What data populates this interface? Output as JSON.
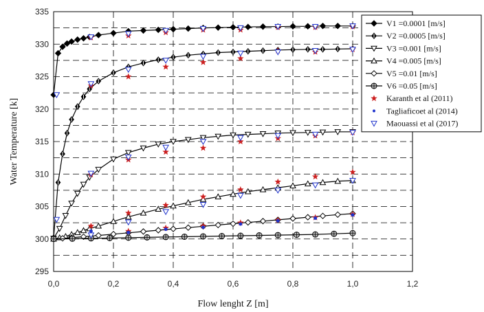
{
  "chart_data": {
    "type": "line",
    "title": "",
    "xlabel": "Flow lenght Z [m]",
    "ylabel": "Water Temperature [k]",
    "xlim": [
      0,
      1.2
    ],
    "ylim": [
      295,
      335
    ],
    "x_ticks": [
      0,
      0.2,
      0.4,
      0.6,
      0.8,
      1.0,
      1.2
    ],
    "x_tick_labels": [
      "0,0",
      "0,2",
      "0,4",
      "0,6",
      "0,8",
      "1,0",
      "1,2"
    ],
    "y_ticks": [
      295,
      300,
      305,
      310,
      315,
      320,
      325,
      330,
      335
    ],
    "y_tick_labels": [
      "295",
      "300",
      "305",
      "310",
      "315",
      "320",
      "325",
      "330",
      "335"
    ],
    "grid": "dashed",
    "legend_position": "top-right",
    "series": [
      {
        "name": "V1 =0.0001 [m/s]",
        "marker": "filled-diamond",
        "color": "#000000",
        "x": [
          0,
          0.015,
          0.03,
          0.045,
          0.06,
          0.08,
          0.1,
          0.12,
          0.15,
          0.2,
          0.25,
          0.3,
          0.35,
          0.4,
          0.45,
          0.5,
          0.55,
          0.6,
          0.65,
          0.7,
          0.75,
          0.8,
          0.85,
          0.9,
          0.95,
          1.0
        ],
        "y": [
          322.2,
          328.6,
          329.6,
          330.1,
          330.4,
          330.7,
          330.9,
          331.1,
          331.4,
          331.7,
          332.0,
          332.1,
          332.2,
          332.3,
          332.4,
          332.5,
          332.55,
          332.6,
          332.65,
          332.7,
          332.7,
          332.75,
          332.75,
          332.8,
          332.8,
          332.8
        ]
      },
      {
        "name": "V2 =0.0005 [m/s]",
        "marker": "open-diamond-bold",
        "color": "#000000",
        "x": [
          0,
          0.015,
          0.03,
          0.045,
          0.06,
          0.08,
          0.1,
          0.12,
          0.15,
          0.2,
          0.25,
          0.3,
          0.35,
          0.4,
          0.45,
          0.5,
          0.55,
          0.6,
          0.65,
          0.7,
          0.75,
          0.8,
          0.85,
          0.9,
          0.95,
          1.0
        ],
        "y": [
          300.2,
          308.7,
          313.1,
          316.3,
          318.4,
          320.4,
          321.9,
          323.1,
          324.3,
          325.6,
          326.5,
          327.1,
          327.6,
          328.0,
          328.3,
          328.5,
          328.7,
          328.8,
          328.9,
          329.0,
          329.1,
          329.15,
          329.2,
          329.2,
          329.25,
          329.3
        ]
      },
      {
        "name": "V3 =0.001   [m/s]",
        "marker": "open-triangle-down",
        "color": "#000000",
        "x": [
          0,
          0.02,
          0.04,
          0.06,
          0.08,
          0.1,
          0.12,
          0.15,
          0.2,
          0.25,
          0.3,
          0.35,
          0.4,
          0.45,
          0.5,
          0.55,
          0.6,
          0.65,
          0.7,
          0.75,
          0.8,
          0.85,
          0.9,
          0.95,
          1.0
        ],
        "y": [
          300.1,
          301.6,
          303.6,
          305.5,
          307.0,
          308.4,
          309.5,
          310.7,
          312.3,
          313.3,
          314.0,
          314.6,
          315.0,
          315.3,
          315.6,
          315.8,
          316.0,
          316.1,
          316.2,
          316.3,
          316.35,
          316.4,
          316.45,
          316.5,
          316.5
        ]
      },
      {
        "name": "V4 =0.005   [m/s]",
        "marker": "open-triangle-up",
        "color": "#000000",
        "x": [
          0,
          0.02,
          0.04,
          0.06,
          0.08,
          0.1,
          0.12,
          0.15,
          0.2,
          0.25,
          0.3,
          0.35,
          0.4,
          0.45,
          0.5,
          0.55,
          0.6,
          0.65,
          0.7,
          0.75,
          0.8,
          0.85,
          0.9,
          0.95,
          1.0
        ],
        "y": [
          300.0,
          300.2,
          300.4,
          300.7,
          301.0,
          301.3,
          301.6,
          302.0,
          302.7,
          303.4,
          304.0,
          304.6,
          305.1,
          305.6,
          306.1,
          306.5,
          306.9,
          307.3,
          307.6,
          307.9,
          308.2,
          308.5,
          308.7,
          308.9,
          309.0
        ]
      },
      {
        "name": "V5 =0.01     [m/s]",
        "marker": "open-diamond",
        "color": "#000000",
        "x": [
          0,
          0.03,
          0.06,
          0.1,
          0.15,
          0.2,
          0.25,
          0.3,
          0.35,
          0.4,
          0.45,
          0.5,
          0.55,
          0.6,
          0.65,
          0.7,
          0.75,
          0.8,
          0.85,
          0.9,
          0.95,
          1.0
        ],
        "y": [
          300.0,
          300.1,
          300.2,
          300.35,
          300.55,
          300.75,
          300.95,
          301.15,
          301.35,
          301.55,
          301.75,
          301.95,
          302.15,
          302.35,
          302.55,
          302.75,
          302.95,
          303.15,
          303.35,
          303.55,
          303.75,
          303.9
        ]
      },
      {
        "name": "V6 =0.05     [m/s]",
        "marker": "crossed-circle",
        "color": "#000000",
        "x": [
          0,
          0.0625,
          0.125,
          0.1875,
          0.25,
          0.3125,
          0.375,
          0.4375,
          0.5,
          0.5625,
          0.625,
          0.6875,
          0.75,
          0.8125,
          0.875,
          0.9375,
          1.0
        ],
        "y": [
          300.0,
          300.05,
          300.1,
          300.15,
          300.2,
          300.25,
          300.3,
          300.35,
          300.4,
          300.45,
          300.5,
          300.55,
          300.6,
          300.65,
          300.7,
          300.8,
          300.9
        ]
      },
      {
        "name": "Karanth  et al  (2011)",
        "marker": "star",
        "color": "#cc1f1f",
        "scatter": true,
        "x": [
          0.125,
          0.125,
          0.125,
          0.125,
          0.25,
          0.25,
          0.25,
          0.25,
          0.25,
          0.375,
          0.375,
          0.375,
          0.375,
          0.375,
          0.5,
          0.5,
          0.5,
          0.5,
          0.5,
          0.625,
          0.625,
          0.625,
          0.625,
          0.625,
          0.75,
          0.75,
          0.75,
          0.75,
          0.75,
          0.875,
          0.875,
          0.875,
          0.875,
          0.875,
          1.0,
          1.0,
          1.0,
          1.0,
          1.0
        ],
        "y": [
          331.0,
          323.6,
          309.9,
          302.0,
          331.3,
          325.0,
          312.2,
          304.0,
          301.2,
          331.8,
          326.5,
          313.4,
          305.2,
          301.7,
          332.2,
          327.2,
          314.0,
          306.5,
          302.0,
          332.2,
          327.8,
          315.0,
          307.6,
          302.5,
          332.6,
          329.0,
          315.5,
          308.8,
          302.9,
          332.6,
          328.8,
          315.9,
          309.6,
          303.3,
          332.7,
          329.2,
          316.4,
          310.3,
          303.8
        ]
      },
      {
        "name": "Tagliaficoet al (2014)",
        "marker": "dot",
        "color": "#1f33cc",
        "scatter": true,
        "x": [
          0.125,
          0.125,
          0.125,
          0.125,
          0.125,
          0.25,
          0.25,
          0.25,
          0.25,
          0.25,
          0.375,
          0.375,
          0.375,
          0.375,
          0.375,
          0.5,
          0.5,
          0.5,
          0.5,
          0.5,
          0.625,
          0.625,
          0.625,
          0.625,
          0.625,
          0.75,
          0.75,
          0.75,
          0.75,
          0.75,
          0.875,
          0.875,
          0.875,
          0.875,
          0.875,
          1.0,
          1.0,
          1.0,
          1.0,
          1.0
        ],
        "y": [
          331.1,
          323.9,
          310.1,
          301.2,
          300.6,
          331.6,
          326.1,
          312.6,
          302.6,
          301.0,
          332.1,
          327.5,
          314.1,
          304.2,
          301.5,
          332.4,
          328.1,
          315.0,
          305.3,
          301.8,
          332.5,
          328.6,
          315.6,
          306.7,
          302.3,
          332.7,
          328.8,
          315.9,
          307.5,
          302.8,
          332.7,
          329.0,
          316.1,
          308.3,
          303.2,
          332.8,
          329.2,
          316.4,
          309.0,
          303.7
        ]
      },
      {
        "name": "Maouassi et al (2017)",
        "marker": "open-triangle-down",
        "color": "#1f33cc",
        "scatter": true,
        "x": [
          0.01,
          0.01,
          0.125,
          0.125,
          0.125,
          0.125,
          0.25,
          0.25,
          0.25,
          0.25,
          0.375,
          0.375,
          0.375,
          0.375,
          0.5,
          0.5,
          0.5,
          0.5,
          0.625,
          0.625,
          0.625,
          0.625,
          0.75,
          0.75,
          0.75,
          0.75,
          0.875,
          0.875,
          0.875,
          0.875,
          1.0,
          1.0,
          1.0,
          1.0
        ],
        "y": [
          322.2,
          303.0,
          331.1,
          323.9,
          310.1,
          300.6,
          331.6,
          326.1,
          312.6,
          302.6,
          332.1,
          327.5,
          314.1,
          304.2,
          332.4,
          328.1,
          315.0,
          305.3,
          332.5,
          328.6,
          315.6,
          306.7,
          332.7,
          328.8,
          315.9,
          307.5,
          332.7,
          329.0,
          316.1,
          308.3,
          332.8,
          329.2,
          316.4,
          309.0
        ]
      }
    ]
  }
}
